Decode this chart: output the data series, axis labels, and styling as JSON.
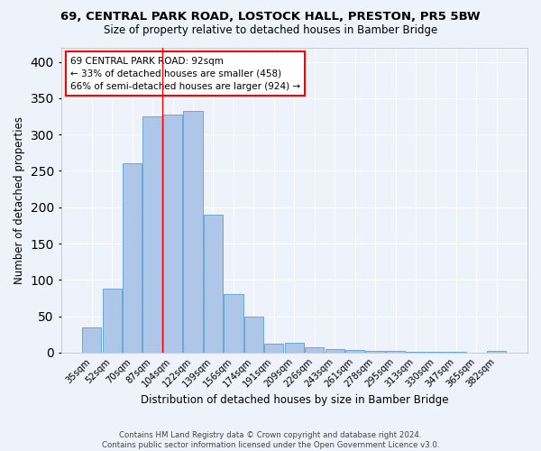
{
  "title1": "69, CENTRAL PARK ROAD, LOSTOCK HALL, PRESTON, PR5 5BW",
  "title2": "Size of property relative to detached houses in Bamber Bridge",
  "xlabel": "Distribution of detached houses by size in Bamber Bridge",
  "ylabel": "Number of detached properties",
  "footnote1": "Contains HM Land Registry data © Crown copyright and database right 2024.",
  "footnote2": "Contains public sector information licensed under the Open Government Licence v3.0.",
  "bar_labels": [
    "35sqm",
    "52sqm",
    "70sqm",
    "87sqm",
    "104sqm",
    "122sqm",
    "139sqm",
    "156sqm",
    "174sqm",
    "191sqm",
    "209sqm",
    "226sqm",
    "243sqm",
    "261sqm",
    "278sqm",
    "295sqm",
    "313sqm",
    "330sqm",
    "347sqm",
    "365sqm",
    "382sqm"
  ],
  "bar_values": [
    35,
    88,
    260,
    325,
    328,
    332,
    190,
    80,
    50,
    12,
    14,
    8,
    5,
    4,
    3,
    2,
    1,
    1,
    1,
    0,
    3
  ],
  "bar_color": "#aec6e8",
  "bar_edge_color": "#5a9fd4",
  "annotation_title": "69 CENTRAL PARK ROAD: 92sqm",
  "annotation_line1": "← 33% of detached houses are smaller (458)",
  "annotation_line2": "66% of semi-detached houses are larger (924) →",
  "vline_x": 3.0,
  "ylim": [
    0,
    420
  ],
  "yticks": [
    0,
    50,
    100,
    150,
    200,
    250,
    300,
    350,
    400
  ],
  "background_color": "#eef2fb",
  "grid_color": "#ffffff"
}
